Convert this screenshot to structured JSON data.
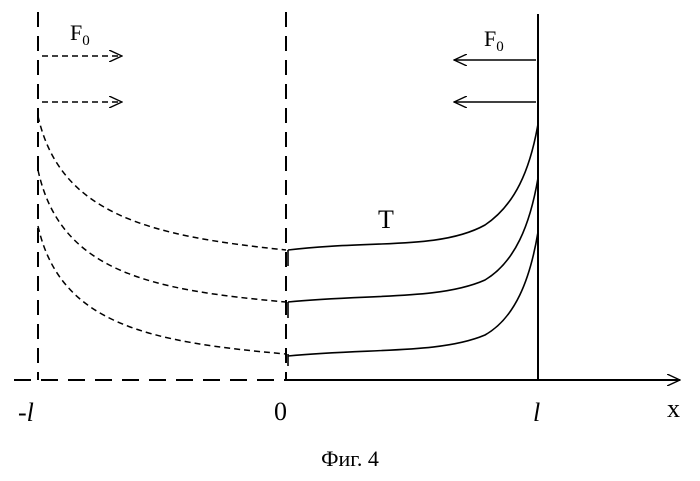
{
  "figure": {
    "caption": "Фиг. 4",
    "axis": {
      "x_label": "x",
      "tick_labels": {
        "left": "-l",
        "center": "0",
        "right": "l"
      }
    },
    "curve_label": "T",
    "force_left": {
      "main": "F",
      "sub": "0"
    },
    "force_right": {
      "main": "F",
      "sub": "0"
    }
  }
}
